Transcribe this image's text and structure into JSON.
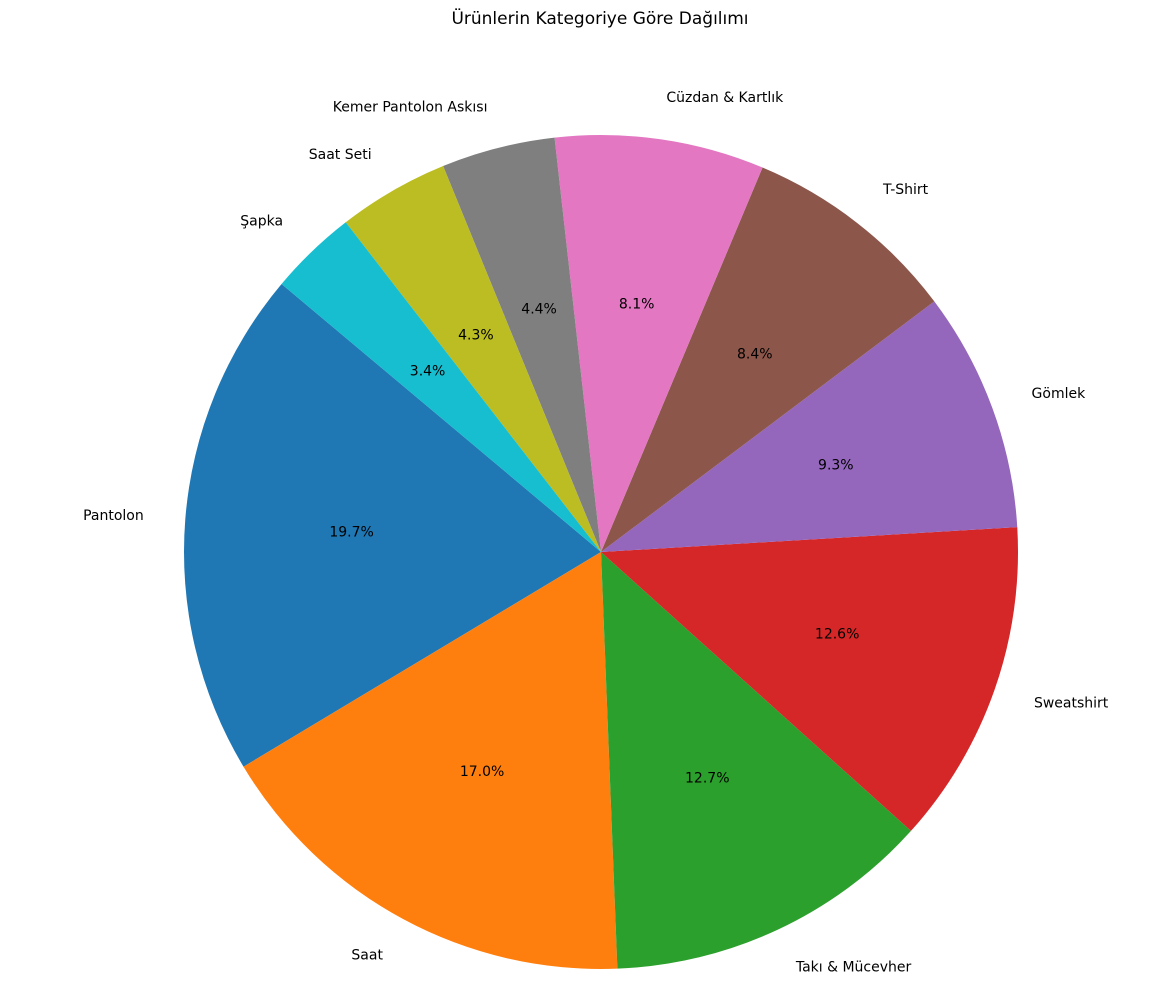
{
  "chart_data": {
    "type": "pie",
    "title": "Ürünlerin Kategoriye Göre Dağılımı",
    "start_angle_deg": 140,
    "direction": "counterclockwise",
    "slices": [
      {
        "label": "Pantolon",
        "value": 19.7,
        "pct_text": "19.7%",
        "color": "#1f77b4"
      },
      {
        "label": "Saat",
        "value": 17.0,
        "pct_text": "17.0%",
        "color": "#ff7f0e"
      },
      {
        "label": "Takı & Mücevher",
        "value": 12.7,
        "pct_text": "12.7%",
        "color": "#2ca02c"
      },
      {
        "label": "Sweatshirt",
        "value": 12.6,
        "pct_text": "12.6%",
        "color": "#d62728"
      },
      {
        "label": "Gömlek",
        "value": 9.3,
        "pct_text": "9.3%",
        "color": "#9467bd"
      },
      {
        "label": "T-Shirt",
        "value": 8.4,
        "pct_text": "8.4%",
        "color": "#8c564b"
      },
      {
        "label": "Cüzdan & Kartlık",
        "value": 8.1,
        "pct_text": "8.1%",
        "color": "#e377c2"
      },
      {
        "label": "Kemer Pantolon Askısı",
        "value": 4.4,
        "pct_text": "4.4%",
        "color": "#7f7f7f"
      },
      {
        "label": "Saat Seti",
        "value": 4.3,
        "pct_text": "4.3%",
        "color": "#bcbd22"
      },
      {
        "label": "Şapka",
        "value": 3.4,
        "pct_text": "3.4%",
        "color": "#17becf"
      }
    ]
  }
}
